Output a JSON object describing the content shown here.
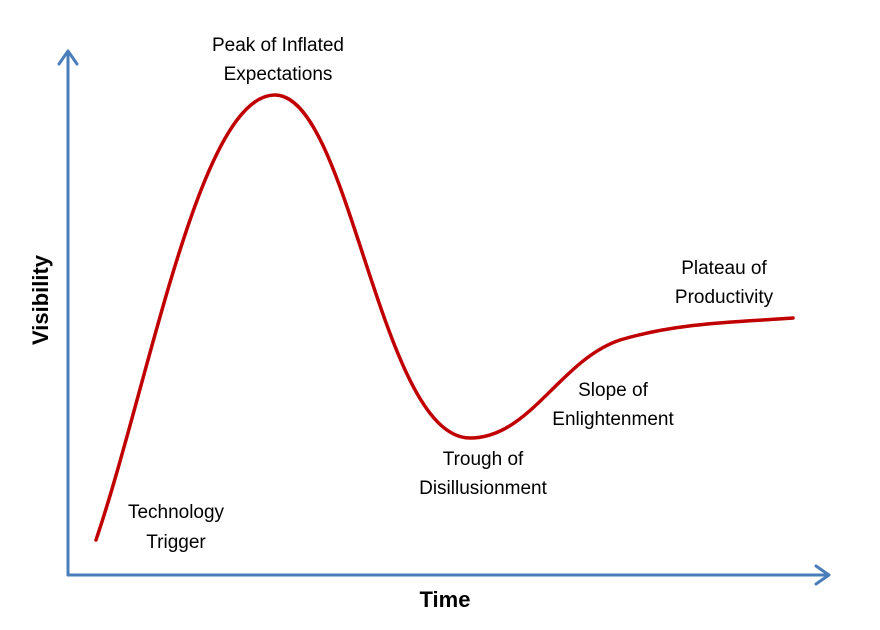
{
  "axes": {
    "x_label": "Time",
    "y_label": "Visibility"
  },
  "phases": [
    {
      "lines": [
        "Technology",
        "Trigger"
      ]
    },
    {
      "lines": [
        "Peak of Inflated",
        "Expectations"
      ]
    },
    {
      "lines": [
        "Trough of",
        "Disillusionment"
      ]
    },
    {
      "lines": [
        "Slope of",
        "Enlightenment"
      ]
    },
    {
      "lines": [
        "Plateau of",
        "Productivity"
      ]
    }
  ]
}
